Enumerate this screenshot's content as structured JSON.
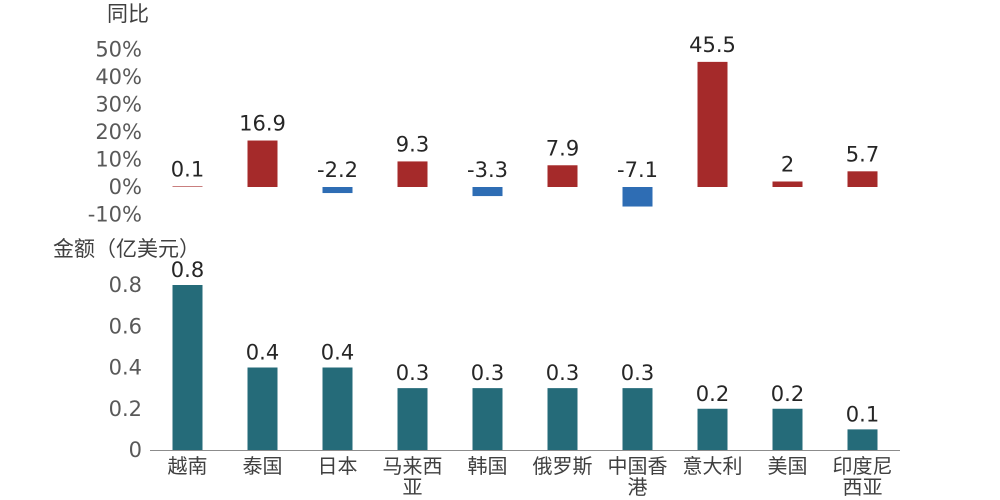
{
  "colors": {
    "positive": "#a52a2a",
    "negative": "#2e6db4",
    "amount": "#256b79",
    "axis": "#8c8c8c",
    "text": "#404040"
  },
  "chart_data": [
    {
      "type": "bar",
      "ylabel": "同比",
      "ylim": [
        -10,
        50
      ],
      "yticks": [
        "50%",
        "40%",
        "30%",
        "20%",
        "10%",
        "0%",
        "-10%"
      ],
      "ytick_values": [
        50,
        40,
        30,
        20,
        10,
        0,
        -10
      ],
      "categories": [
        "越南",
        "泰国",
        "日本",
        "马来西亚",
        "韩国",
        "俄罗斯",
        "中国香港",
        "意大利",
        "美国",
        "印度尼西亚"
      ],
      "values": [
        0.1,
        16.9,
        -2.2,
        9.3,
        -3.3,
        7.9,
        -7.1,
        45.5,
        2,
        5.7
      ],
      "data_labels": [
        "0.1",
        "16.9",
        "-2.2",
        "9.3",
        "-3.3",
        "7.9",
        "-7.1",
        "45.5",
        "2",
        "5.7"
      ]
    },
    {
      "type": "bar",
      "ylabel": "金额（亿美元）",
      "ylim": [
        0,
        0.8
      ],
      "yticks": [
        "0.8",
        "0.6",
        "0.4",
        "0.2",
        "0"
      ],
      "ytick_values": [
        0.8,
        0.6,
        0.4,
        0.2,
        0
      ],
      "categories": [
        "越南",
        "泰国",
        "日本",
        "马来西亚",
        "韩国",
        "俄罗斯",
        "中国香港",
        "意大利",
        "美国",
        "印度尼西亚"
      ],
      "category_lines": [
        [
          "越南"
        ],
        [
          "泰国"
        ],
        [
          "日本"
        ],
        [
          "马来西",
          "亚"
        ],
        [
          "韩国"
        ],
        [
          "俄罗斯"
        ],
        [
          "中国香",
          "港"
        ],
        [
          "意大利"
        ],
        [
          "美国"
        ],
        [
          "印度尼",
          "西亚"
        ]
      ],
      "values": [
        0.8,
        0.4,
        0.4,
        0.3,
        0.3,
        0.3,
        0.3,
        0.2,
        0.2,
        0.1
      ],
      "data_labels": [
        "0.8",
        "0.4",
        "0.4",
        "0.3",
        "0.3",
        "0.3",
        "0.3",
        "0.2",
        "0.2",
        "0.1"
      ]
    }
  ]
}
